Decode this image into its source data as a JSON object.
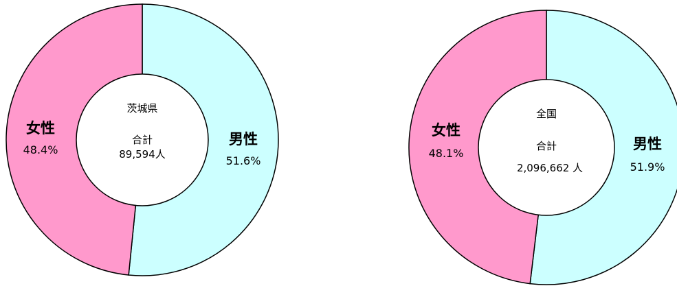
{
  "colors": {
    "male": "#ccffff",
    "female": "#ff99cc",
    "stroke": "#000000",
    "center": "#ffffff"
  },
  "chart_data": [
    {
      "type": "pie",
      "style": "donut",
      "center": {
        "region": "茨城県",
        "total_label": "合計",
        "total_value": "89,594人"
      },
      "slices": [
        {
          "label": "男性",
          "percent_text": "51.6%",
          "value": 51.6,
          "color": "#ccffff"
        },
        {
          "label": "女性",
          "percent_text": "48.4%",
          "value": 48.4,
          "color": "#ff99cc"
        }
      ]
    },
    {
      "type": "pie",
      "style": "donut",
      "center": {
        "region": "全国",
        "total_label": "合計",
        "total_value": "2,096,662 人"
      },
      "slices": [
        {
          "label": "男性",
          "percent_text": "51.9%",
          "value": 51.9,
          "color": "#ccffff"
        },
        {
          "label": "女性",
          "percent_text": "48.1%",
          "value": 48.1,
          "color": "#ff99cc"
        }
      ]
    }
  ]
}
